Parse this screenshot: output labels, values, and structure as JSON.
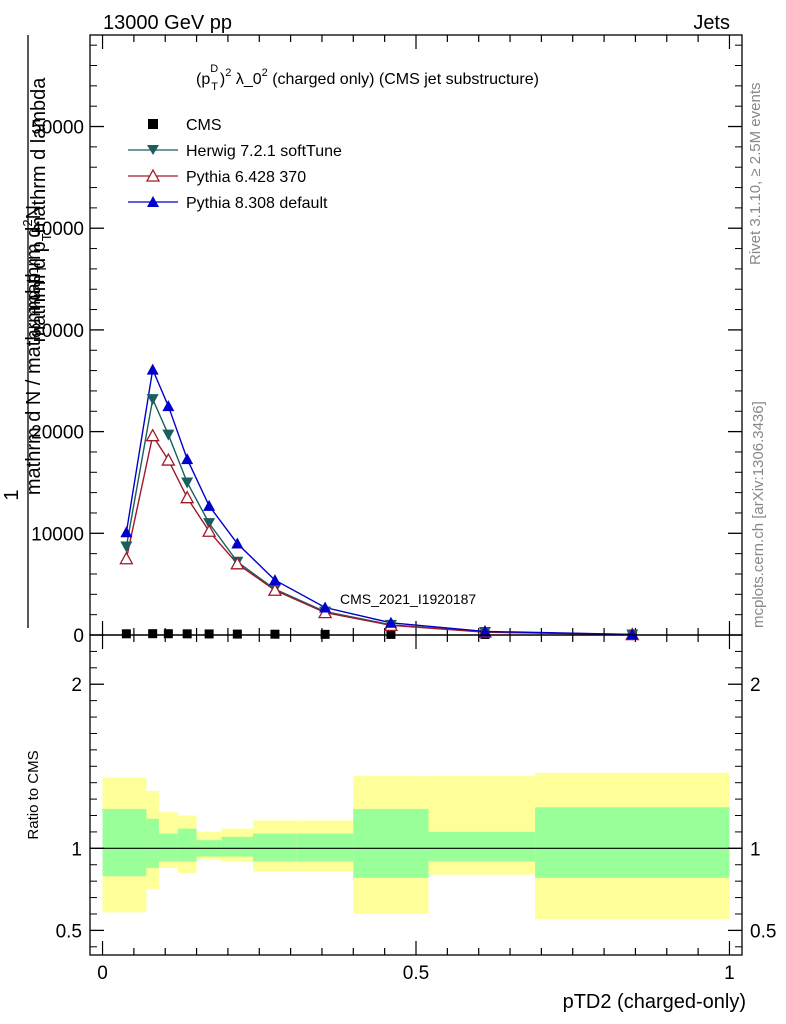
{
  "header": {
    "left": "13000 GeV pp",
    "right": "Jets"
  },
  "plot_title": "(p_T^D)^2 λ_0^2 (charged only) (CMS jet substructure)",
  "plot_title_parts": {
    "a": "(p",
    "sup_d": "D",
    "sub_t": "T",
    "b": ")",
    "sup_2a": "2",
    "c": " λ_0",
    "sup_2b": "2",
    "d": " (charged only) (CMS jet substructure)"
  },
  "watermark": "CMS_2021_I1920187",
  "side_labels": {
    "rivet": "Rivet 3.1.10, ≥ 2.5M events",
    "mcplots": "mcplots.cern.ch [arXiv:1306.3436]"
  },
  "ylabel_parts": {
    "one": "1",
    "num_line1": "mathrm d",
    "num_sup": "2",
    "num_line1b": "N",
    "num_line2": "mathrm d p",
    "num_sub": "T",
    "num_line2b": "mathrm d lambda",
    "den": "mathrm d N / mathrm d p",
    "den_sub": "T"
  },
  "ratio_ylabel": "Ratio to CMS",
  "colors": {
    "herwig": "#1b5e5e",
    "pythia6": "#9e1a2a",
    "pythia8": "#0000cc",
    "cms": "#000000",
    "band_inner": "#99ff99",
    "band_outer": "#ffff99"
  },
  "chart_data": [
    {
      "type": "line",
      "panel": "main",
      "xlabel": "pTD2 (charged-only)",
      "xlim": [
        -0.02,
        1.02
      ],
      "ylim": [
        0,
        59000
      ],
      "yticks": [
        0,
        10000,
        20000,
        30000,
        40000,
        50000
      ],
      "ytick_labels": [
        "0",
        "10000",
        "20000",
        "30000",
        "40000",
        "50000"
      ],
      "legend_position": "top-left",
      "series": [
        {
          "name": "CMS",
          "marker": "square",
          "x": [
            0.038,
            0.08,
            0.105,
            0.135,
            0.17,
            0.215,
            0.275,
            0.355,
            0.46,
            0.61,
            0.845
          ],
          "y": [
            70,
            80,
            75,
            65,
            55,
            40,
            30,
            15,
            10,
            5,
            2
          ]
        },
        {
          "name": "Herwig 7.2.1 softTune",
          "marker": "triangle-down",
          "x": [
            0.038,
            0.08,
            0.105,
            0.135,
            0.17,
            0.215,
            0.275,
            0.355,
            0.46,
            0.61,
            0.845
          ],
          "y": [
            8700,
            23200,
            19700,
            15000,
            11000,
            7200,
            4500,
            2300,
            1000,
            300,
            50
          ]
        },
        {
          "name": "Pythia 6.428 370",
          "marker": "triangle-up-open",
          "x": [
            0.038,
            0.08,
            0.105,
            0.135,
            0.17,
            0.215,
            0.275,
            0.355,
            0.46,
            0.61,
            0.845
          ],
          "y": [
            7500,
            19600,
            17200,
            13500,
            10200,
            7000,
            4400,
            2200,
            950,
            280,
            40
          ]
        },
        {
          "name": "Pythia 8.308 default",
          "marker": "triangle-up",
          "x": [
            0.038,
            0.08,
            0.105,
            0.135,
            0.17,
            0.215,
            0.275,
            0.355,
            0.46,
            0.61,
            0.845
          ],
          "y": [
            10100,
            26100,
            22500,
            17300,
            12700,
            9000,
            5400,
            2700,
            1200,
            350,
            60
          ]
        }
      ]
    },
    {
      "type": "area",
      "panel": "ratio",
      "ylabel": "Ratio to CMS",
      "xlim": [
        -0.02,
        1.02
      ],
      "ylim": [
        0.35,
        2.3
      ],
      "yticks": [
        0.5,
        1,
        2
      ],
      "ytick_labels": [
        "0.5",
        "1",
        "2"
      ],
      "xticks": [
        0,
        0.5,
        1
      ],
      "xtick_labels": [
        "0",
        "0.5",
        "1"
      ],
      "bins": [
        {
          "x0": 0.0,
          "x1": 0.07,
          "in_lo": 0.83,
          "in_hi": 1.24,
          "out_lo": 0.61,
          "out_hi": 1.43
        },
        {
          "x0": 0.07,
          "x1": 0.09,
          "in_lo": 0.88,
          "in_hi": 1.18,
          "out_lo": 0.75,
          "out_hi": 1.35
        },
        {
          "x0": 0.09,
          "x1": 0.12,
          "in_lo": 0.92,
          "in_hi": 1.09,
          "out_lo": 0.88,
          "out_hi": 1.22
        },
        {
          "x0": 0.12,
          "x1": 0.15,
          "in_lo": 0.92,
          "in_hi": 1.12,
          "out_lo": 0.85,
          "out_hi": 1.2
        },
        {
          "x0": 0.15,
          "x1": 0.19,
          "in_lo": 0.95,
          "in_hi": 1.05,
          "out_lo": 0.93,
          "out_hi": 1.1
        },
        {
          "x0": 0.19,
          "x1": 0.24,
          "in_lo": 0.95,
          "in_hi": 1.07,
          "out_lo": 0.92,
          "out_hi": 1.12
        },
        {
          "x0": 0.24,
          "x1": 0.31,
          "in_lo": 0.92,
          "in_hi": 1.09,
          "out_lo": 0.86,
          "out_hi": 1.17
        },
        {
          "x0": 0.31,
          "x1": 0.4,
          "in_lo": 0.92,
          "in_hi": 1.09,
          "out_lo": 0.86,
          "out_hi": 1.17
        },
        {
          "x0": 0.4,
          "x1": 0.52,
          "in_lo": 0.82,
          "in_hi": 1.24,
          "out_lo": 0.6,
          "out_hi": 1.44
        },
        {
          "x0": 0.52,
          "x1": 0.69,
          "in_lo": 0.92,
          "in_hi": 1.1,
          "out_lo": 0.84,
          "out_hi": 1.44
        },
        {
          "x0": 0.69,
          "x1": 1.0,
          "in_lo": 0.82,
          "in_hi": 1.25,
          "out_lo": 0.57,
          "out_hi": 1.46
        }
      ]
    }
  ]
}
